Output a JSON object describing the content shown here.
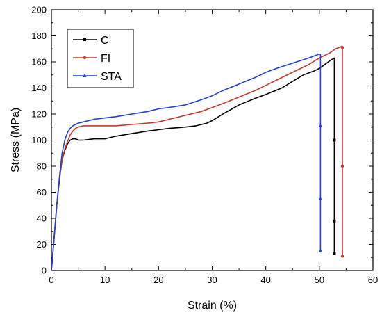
{
  "chart_data": {
    "type": "line",
    "title": "",
    "xlabel": "Strain (%)",
    "ylabel": "Stress (MPa)",
    "xlim": [
      0,
      60
    ],
    "ylim": [
      0,
      200
    ],
    "xticks": [
      0,
      10,
      20,
      30,
      40,
      50,
      60
    ],
    "yticks": [
      0,
      20,
      40,
      60,
      80,
      100,
      120,
      140,
      160,
      180,
      200
    ],
    "grid": false,
    "legend_position": "top-left",
    "series": [
      {
        "name": "C",
        "color": "#000000",
        "marker": "square",
        "x": [
          0,
          0.5,
          1,
          1.5,
          2,
          2.5,
          3,
          3.5,
          4,
          4.5,
          5,
          6,
          8,
          10,
          12,
          15,
          18,
          20,
          22,
          25,
          27,
          28,
          29,
          30,
          32,
          35,
          38,
          40,
          43,
          45,
          47,
          49,
          50,
          51,
          52,
          52.8,
          52.8,
          52.8,
          52.8
        ],
        "y": [
          0,
          25,
          50,
          70,
          85,
          92,
          97,
          100,
          101,
          101,
          100,
          100,
          101,
          101,
          103,
          105,
          107,
          108,
          109,
          110,
          111,
          112,
          113,
          115,
          120,
          127,
          132,
          135,
          140,
          145,
          150,
          153,
          155,
          158,
          161,
          163,
          100,
          38,
          13
        ]
      },
      {
        "name": "FI",
        "color": "#c0392b",
        "marker": "circle",
        "x": [
          0,
          0.5,
          1,
          1.5,
          2,
          2.5,
          3,
          3.5,
          4,
          4.5,
          5,
          6,
          8,
          10,
          12,
          15,
          18,
          20,
          22,
          25,
          28,
          30,
          32,
          35,
          38,
          40,
          43,
          45,
          48,
          50,
          52,
          53,
          54.3,
          54.3,
          54.3,
          54.3
        ],
        "y": [
          0,
          25,
          50,
          70,
          85,
          93,
          99,
          104,
          107,
          109,
          110,
          111,
          111,
          111,
          111,
          112,
          113,
          114,
          116,
          119,
          122,
          125,
          128,
          133,
          138,
          142,
          148,
          152,
          158,
          163,
          167,
          170,
          172,
          171,
          80,
          11
        ]
      },
      {
        "name": "STA",
        "color": "#1f3fd6",
        "marker": "triangle",
        "x": [
          0,
          0.5,
          1,
          1.5,
          2,
          2.5,
          3,
          3.5,
          4,
          5,
          6,
          8,
          10,
          12,
          15,
          18,
          20,
          22,
          25,
          28,
          30,
          32,
          35,
          38,
          40,
          42,
          45,
          48,
          50,
          50.2,
          50.2,
          50.2,
          50.2
        ],
        "y": [
          0,
          25,
          50,
          72,
          90,
          100,
          106,
          109,
          111,
          113,
          114,
          116,
          117,
          118,
          120,
          122,
          124,
          125,
          127,
          131,
          134,
          138,
          143,
          148,
          152,
          155,
          159,
          163,
          166,
          166,
          111,
          55,
          15
        ]
      }
    ]
  }
}
